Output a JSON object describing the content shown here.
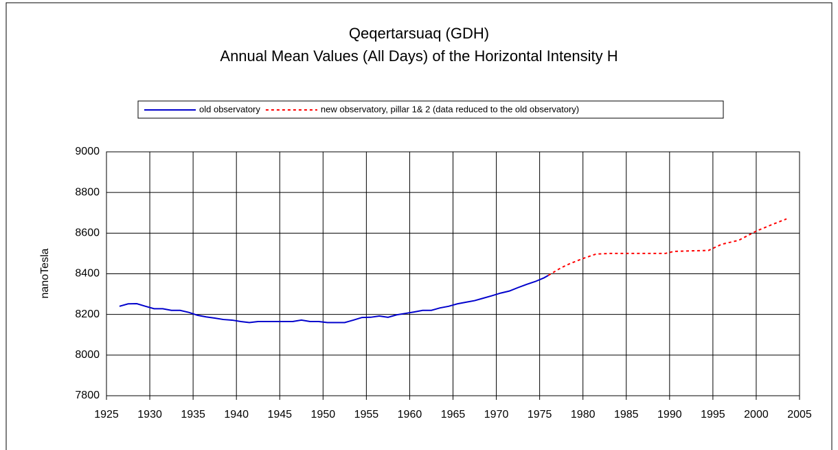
{
  "chart_data": {
    "type": "line",
    "title": "Qeqertarsuaq (GDH)",
    "subtitle": "Annual Mean Values (All Days) of the Horizontal Intensity H",
    "y_label": "nanoTesla",
    "xlim": [
      1925,
      2005
    ],
    "xticks": [
      1925,
      1930,
      1935,
      1940,
      1945,
      1950,
      1955,
      1960,
      1965,
      1970,
      1975,
      1980,
      1985,
      1990,
      1995,
      2000,
      2005
    ],
    "ylim": [
      7800,
      9000
    ],
    "yticks": [
      7800,
      8000,
      8200,
      8400,
      8600,
      8800,
      9000
    ],
    "grid": true,
    "legend": "top",
    "series": [
      {
        "name": "old observatory",
        "color": "#0000cc",
        "dash": "solid",
        "x": [
          1926.5,
          1927.5,
          1928.5,
          1929.5,
          1930.5,
          1931.5,
          1932.5,
          1933.5,
          1934.5,
          1935.5,
          1936.5,
          1937.5,
          1938.5,
          1939.5,
          1940.5,
          1941.5,
          1942.5,
          1943.5,
          1944.5,
          1945.5,
          1946.5,
          1947.5,
          1948.5,
          1949.5,
          1950.5,
          1951.5,
          1952.5,
          1953.5,
          1954.5,
          1955.5,
          1956.5,
          1957.5,
          1958.5,
          1959.5,
          1960.5,
          1961.5,
          1962.5,
          1963.5,
          1964.5,
          1965.5,
          1966.5,
          1967.5,
          1968.5,
          1969.5,
          1970.5,
          1971.5,
          1972.5,
          1973.5,
          1974.5,
          1975.5,
          1976
        ],
        "values": [
          8240,
          8252,
          8253,
          8240,
          8228,
          8228,
          8220,
          8220,
          8210,
          8196,
          8188,
          8182,
          8175,
          8172,
          8165,
          8160,
          8165,
          8165,
          8165,
          8165,
          8165,
          8172,
          8165,
          8165,
          8160,
          8160,
          8160,
          8172,
          8185,
          8186,
          8192,
          8186,
          8198,
          8205,
          8212,
          8220,
          8220,
          8232,
          8240,
          8252,
          8260,
          8268,
          8280,
          8292,
          8305,
          8315,
          8332,
          8348,
          8362,
          8380,
          8392
        ]
      },
      {
        "name": "new observatory, pillar 1& 2 (data reduced to the old observatory)",
        "color": "#ff0000",
        "dash": "dotted",
        "x": [
          1976,
          1977.5,
          1978.5,
          1980,
          1981.5,
          1983,
          1985,
          1987,
          1989.5,
          1990.5,
          1992,
          1994.5,
          1996,
          1998,
          2000,
          2002,
          2003.5
        ],
        "values": [
          8392,
          8430,
          8450,
          8475,
          8497,
          8500,
          8500,
          8500,
          8500,
          8510,
          8512,
          8515,
          8545,
          8565,
          8610,
          8645,
          8670
        ]
      }
    ]
  }
}
